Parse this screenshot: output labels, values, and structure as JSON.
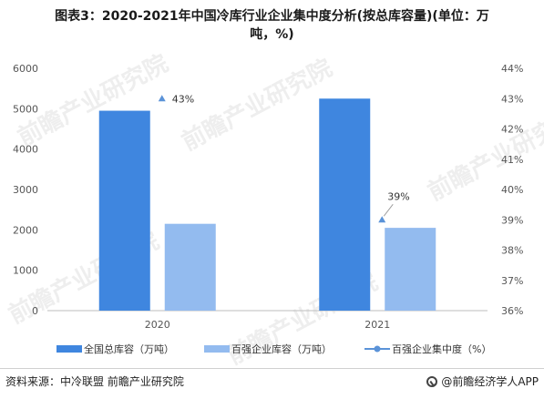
{
  "title_line1": "图表3：2020-2021年中国冷库行业企业集中度分析(按总库容量)(单位：万",
  "title_line2": "吨，%)",
  "source": "资料来源：中冷联盟 前瞻产业研究院",
  "brand": "@前瞻经济学人APP",
  "watermark": "前瞻产业研究院",
  "colors": {
    "bar1": "#3f86df",
    "bar2": "#93bbef",
    "line": "#5b93d8",
    "axis": "#bdbdbd",
    "text": "#555555"
  },
  "chart_data": {
    "type": "bar",
    "categories": [
      "2020",
      "2021"
    ],
    "series": [
      {
        "name": "全国总库容（万吨）",
        "type": "bar",
        "axis": "left",
        "values": [
          4950,
          5250
        ]
      },
      {
        "name": "百强企业库容（万吨）",
        "type": "bar",
        "axis": "left",
        "values": [
          2150,
          2050
        ]
      },
      {
        "name": "百强企业集中度（%）",
        "type": "line",
        "axis": "right",
        "values": [
          43,
          39
        ],
        "labels": [
          "43%",
          "39%"
        ]
      }
    ],
    "ylim_left": [
      0,
      6000
    ],
    "yticks_left": [
      "0",
      "1000",
      "2000",
      "3000",
      "4000",
      "5000",
      "6000"
    ],
    "ylim_right": [
      36,
      44
    ],
    "yticks_right": [
      "36%",
      "37%",
      "38%",
      "39%",
      "40%",
      "41%",
      "42%",
      "43%",
      "44%"
    ],
    "legend": "bottom",
    "grid": false
  }
}
